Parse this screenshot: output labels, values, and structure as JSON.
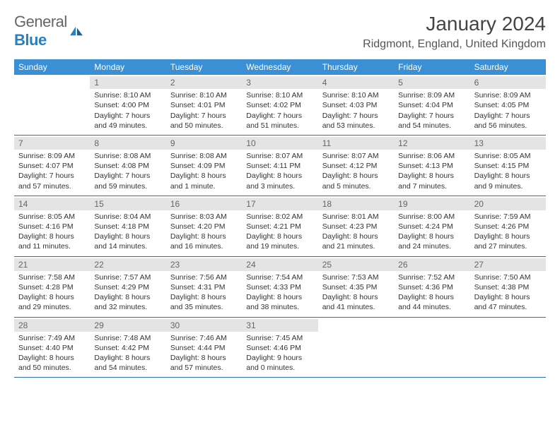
{
  "logo": {
    "general": "General",
    "blue": "Blue"
  },
  "title": {
    "month_year": "January 2024",
    "location": "Ridgmont, England, United Kingdom"
  },
  "calendar": {
    "type": "table",
    "header_bg": "#3b8fd4",
    "header_fg": "#ffffff",
    "day_num_bg": "#e4e4e4",
    "rule_color": "#2f6fa8",
    "text_color": "#333333",
    "background_color": "#ffffff",
    "weekday_fontsize": 12,
    "daynum_fontsize": 12,
    "body_fontsize": 10.5,
    "columns": [
      "Sunday",
      "Monday",
      "Tuesday",
      "Wednesday",
      "Thursday",
      "Friday",
      "Saturday"
    ],
    "weeks": [
      [
        null,
        {
          "n": "1",
          "sr": "Sunrise: 8:10 AM",
          "ss": "Sunset: 4:00 PM",
          "d1": "Daylight: 7 hours",
          "d2": "and 49 minutes."
        },
        {
          "n": "2",
          "sr": "Sunrise: 8:10 AM",
          "ss": "Sunset: 4:01 PM",
          "d1": "Daylight: 7 hours",
          "d2": "and 50 minutes."
        },
        {
          "n": "3",
          "sr": "Sunrise: 8:10 AM",
          "ss": "Sunset: 4:02 PM",
          "d1": "Daylight: 7 hours",
          "d2": "and 51 minutes."
        },
        {
          "n": "4",
          "sr": "Sunrise: 8:10 AM",
          "ss": "Sunset: 4:03 PM",
          "d1": "Daylight: 7 hours",
          "d2": "and 53 minutes."
        },
        {
          "n": "5",
          "sr": "Sunrise: 8:09 AM",
          "ss": "Sunset: 4:04 PM",
          "d1": "Daylight: 7 hours",
          "d2": "and 54 minutes."
        },
        {
          "n": "6",
          "sr": "Sunrise: 8:09 AM",
          "ss": "Sunset: 4:05 PM",
          "d1": "Daylight: 7 hours",
          "d2": "and 56 minutes."
        }
      ],
      [
        {
          "n": "7",
          "sr": "Sunrise: 8:09 AM",
          "ss": "Sunset: 4:07 PM",
          "d1": "Daylight: 7 hours",
          "d2": "and 57 minutes."
        },
        {
          "n": "8",
          "sr": "Sunrise: 8:08 AM",
          "ss": "Sunset: 4:08 PM",
          "d1": "Daylight: 7 hours",
          "d2": "and 59 minutes."
        },
        {
          "n": "9",
          "sr": "Sunrise: 8:08 AM",
          "ss": "Sunset: 4:09 PM",
          "d1": "Daylight: 8 hours",
          "d2": "and 1 minute."
        },
        {
          "n": "10",
          "sr": "Sunrise: 8:07 AM",
          "ss": "Sunset: 4:11 PM",
          "d1": "Daylight: 8 hours",
          "d2": "and 3 minutes."
        },
        {
          "n": "11",
          "sr": "Sunrise: 8:07 AM",
          "ss": "Sunset: 4:12 PM",
          "d1": "Daylight: 8 hours",
          "d2": "and 5 minutes."
        },
        {
          "n": "12",
          "sr": "Sunrise: 8:06 AM",
          "ss": "Sunset: 4:13 PM",
          "d1": "Daylight: 8 hours",
          "d2": "and 7 minutes."
        },
        {
          "n": "13",
          "sr": "Sunrise: 8:05 AM",
          "ss": "Sunset: 4:15 PM",
          "d1": "Daylight: 8 hours",
          "d2": "and 9 minutes."
        }
      ],
      [
        {
          "n": "14",
          "sr": "Sunrise: 8:05 AM",
          "ss": "Sunset: 4:16 PM",
          "d1": "Daylight: 8 hours",
          "d2": "and 11 minutes."
        },
        {
          "n": "15",
          "sr": "Sunrise: 8:04 AM",
          "ss": "Sunset: 4:18 PM",
          "d1": "Daylight: 8 hours",
          "d2": "and 14 minutes."
        },
        {
          "n": "16",
          "sr": "Sunrise: 8:03 AM",
          "ss": "Sunset: 4:20 PM",
          "d1": "Daylight: 8 hours",
          "d2": "and 16 minutes."
        },
        {
          "n": "17",
          "sr": "Sunrise: 8:02 AM",
          "ss": "Sunset: 4:21 PM",
          "d1": "Daylight: 8 hours",
          "d2": "and 19 minutes."
        },
        {
          "n": "18",
          "sr": "Sunrise: 8:01 AM",
          "ss": "Sunset: 4:23 PM",
          "d1": "Daylight: 8 hours",
          "d2": "and 21 minutes."
        },
        {
          "n": "19",
          "sr": "Sunrise: 8:00 AM",
          "ss": "Sunset: 4:24 PM",
          "d1": "Daylight: 8 hours",
          "d2": "and 24 minutes."
        },
        {
          "n": "20",
          "sr": "Sunrise: 7:59 AM",
          "ss": "Sunset: 4:26 PM",
          "d1": "Daylight: 8 hours",
          "d2": "and 27 minutes."
        }
      ],
      [
        {
          "n": "21",
          "sr": "Sunrise: 7:58 AM",
          "ss": "Sunset: 4:28 PM",
          "d1": "Daylight: 8 hours",
          "d2": "and 29 minutes."
        },
        {
          "n": "22",
          "sr": "Sunrise: 7:57 AM",
          "ss": "Sunset: 4:29 PM",
          "d1": "Daylight: 8 hours",
          "d2": "and 32 minutes."
        },
        {
          "n": "23",
          "sr": "Sunrise: 7:56 AM",
          "ss": "Sunset: 4:31 PM",
          "d1": "Daylight: 8 hours",
          "d2": "and 35 minutes."
        },
        {
          "n": "24",
          "sr": "Sunrise: 7:54 AM",
          "ss": "Sunset: 4:33 PM",
          "d1": "Daylight: 8 hours",
          "d2": "and 38 minutes."
        },
        {
          "n": "25",
          "sr": "Sunrise: 7:53 AM",
          "ss": "Sunset: 4:35 PM",
          "d1": "Daylight: 8 hours",
          "d2": "and 41 minutes."
        },
        {
          "n": "26",
          "sr": "Sunrise: 7:52 AM",
          "ss": "Sunset: 4:36 PM",
          "d1": "Daylight: 8 hours",
          "d2": "and 44 minutes."
        },
        {
          "n": "27",
          "sr": "Sunrise: 7:50 AM",
          "ss": "Sunset: 4:38 PM",
          "d1": "Daylight: 8 hours",
          "d2": "and 47 minutes."
        }
      ],
      [
        {
          "n": "28",
          "sr": "Sunrise: 7:49 AM",
          "ss": "Sunset: 4:40 PM",
          "d1": "Daylight: 8 hours",
          "d2": "and 50 minutes."
        },
        {
          "n": "29",
          "sr": "Sunrise: 7:48 AM",
          "ss": "Sunset: 4:42 PM",
          "d1": "Daylight: 8 hours",
          "d2": "and 54 minutes."
        },
        {
          "n": "30",
          "sr": "Sunrise: 7:46 AM",
          "ss": "Sunset: 4:44 PM",
          "d1": "Daylight: 8 hours",
          "d2": "and 57 minutes."
        },
        {
          "n": "31",
          "sr": "Sunrise: 7:45 AM",
          "ss": "Sunset: 4:46 PM",
          "d1": "Daylight: 9 hours",
          "d2": "and 0 minutes."
        },
        null,
        null,
        null
      ]
    ]
  }
}
